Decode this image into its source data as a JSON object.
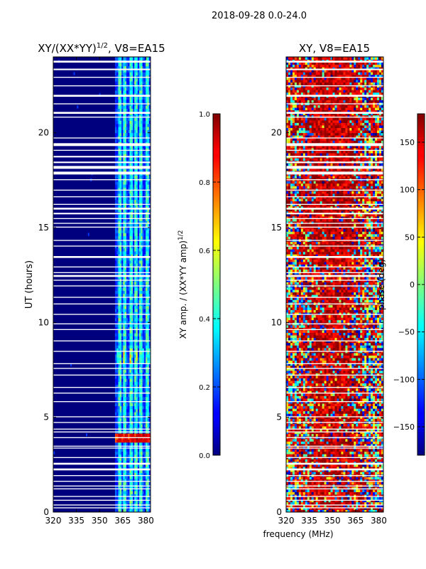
{
  "figure": {
    "suptitle": "2018-09-28 0.0-24.0",
    "xlabel": "frequency (MHz)"
  },
  "chart_data": [
    {
      "id": "amp",
      "type": "heatmap",
      "title": "XY/(XX*YY)^{1/2}, V8=EA15",
      "title_main": "XY/(XX*YY)",
      "title_exp": "1/2",
      "title_rest": ", V8=EA15",
      "xlabel": "",
      "ylabel": "UT (hours)",
      "xlim": [
        320,
        383
      ],
      "ylim": [
        0,
        24
      ],
      "xticks": [
        320,
        335,
        350,
        365,
        380
      ],
      "yticks": [
        0,
        5,
        10,
        15,
        20
      ],
      "colormap": "jet",
      "colorbar": {
        "label": "XY amp. / (XX*YY amp)^{1/2}",
        "label_main": "XY amp. / (XX*YY amp)",
        "label_exp": "1/2",
        "range": [
          0,
          1
        ],
        "ticks": [
          "0.0",
          "0.2",
          "0.4",
          "0.6",
          "0.8",
          "1.0"
        ],
        "tick_values": [
          0,
          0.2,
          0.4,
          0.6,
          0.8,
          1.0
        ]
      },
      "description": "Normalized cross-correlation amplitude; mostly low (~0.05) below 360 MHz, higher (0.2-0.5) in 360-383 MHz band, peaks near 1.0 around 3.8-3.9 UT at ~362-380 MHz"
    },
    {
      "id": "phase",
      "type": "heatmap",
      "title": "XY, V8=EA15",
      "xlabel": "",
      "ylabel": "",
      "xlim": [
        320,
        383
      ],
      "ylim": [
        0,
        24
      ],
      "xticks": [
        320,
        335,
        350,
        365,
        380
      ],
      "yticks": [
        0,
        5,
        10,
        15,
        20
      ],
      "colormap": "jet",
      "colorbar": {
        "label": "phase (deg)",
        "range": [
          -180,
          180
        ],
        "ticks": [
          "−150",
          "−100",
          "−50",
          "0",
          "50",
          "100",
          "150"
        ],
        "tick_values": [
          -150,
          -100,
          -50,
          0,
          50,
          100,
          150
        ]
      },
      "description": "XY phase; noisy full-range phases with coherent ~+120 to +180 deg regions centered near 345-360 MHz"
    }
  ],
  "colors": {
    "background": "#ffffff",
    "flag": "#ffffff",
    "amp_base": "#00007f"
  }
}
